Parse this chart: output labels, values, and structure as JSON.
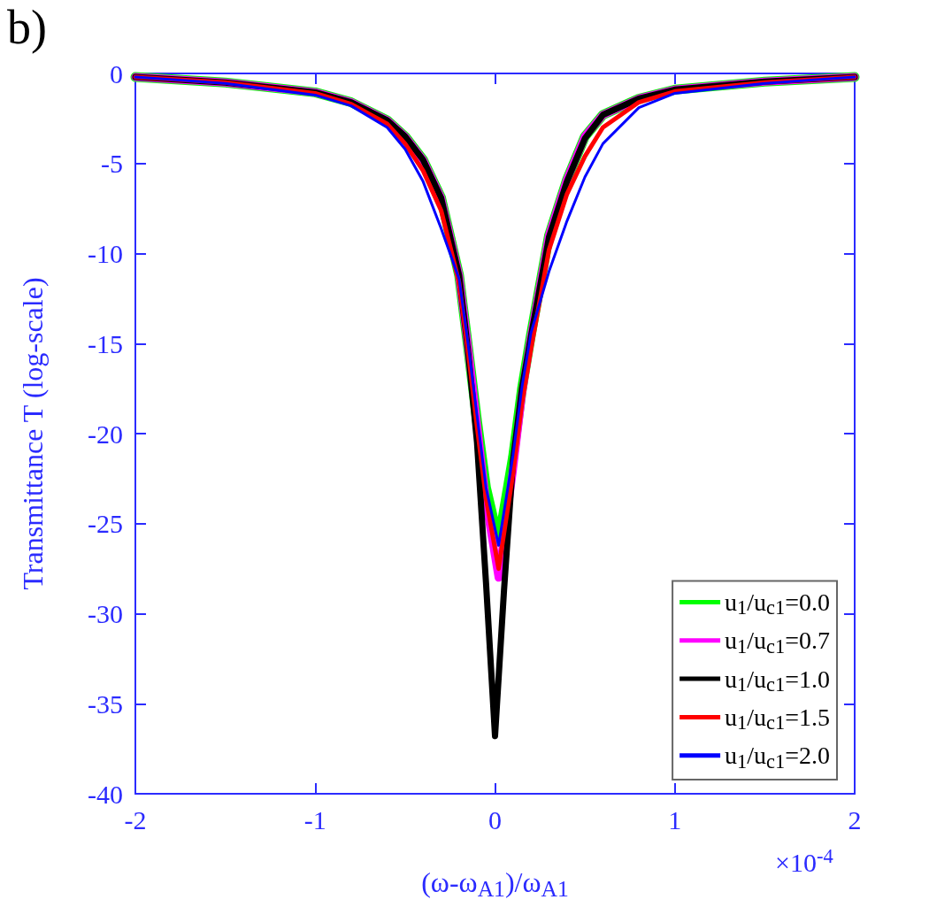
{
  "chart_data": {
    "type": "line",
    "xlabel": "(ω-ω$_{A1}$)/ω$_{A1}$",
    "ylabel": "Transmittance T (log-scale)",
    "annotations": [
      "b)",
      "×10$^{-4}$"
    ],
    "xlim": [
      -2,
      2
    ],
    "xticks": [
      -2,
      -1,
      0,
      1,
      2
    ],
    "ylim": [
      -40,
      0
    ],
    "yticks": [
      -40,
      -35,
      -30,
      -25,
      -20,
      -15,
      -10,
      -5,
      0
    ],
    "grid": false,
    "legend": "bottom right",
    "marker": "none",
    "line_style": "solid",
    "series": [
      {
        "name": "u$_{1}$/u$_{c1}$=0.0",
        "color": "#00ff00",
        "x": [
          -2,
          -1.5,
          -1,
          -0.8,
          -0.6,
          -0.5,
          -0.4,
          -0.3,
          -0.2,
          -0.15,
          -0.1,
          -0.05,
          0.02,
          0.1,
          0.15,
          0.2,
          0.3,
          0.4,
          0.5,
          0.6,
          0.8,
          1,
          1.5,
          2
        ],
        "values": [
          -0.2,
          -0.5,
          -1.05,
          -1.6,
          -2.6,
          -3.5,
          -4.8,
          -6.9,
          -11.2,
          -15.2,
          -19.3,
          -23,
          -26,
          -21.3,
          -17.5,
          -14.5,
          -9,
          -5.9,
          -3.5,
          -2.3,
          -1.4,
          -0.9,
          -0.45,
          -0.2
        ]
      },
      {
        "name": "u$_{1}$/u$_{c1}$=0.7",
        "color": "#ff00ff",
        "x": [
          -2,
          -1.5,
          -1,
          -0.8,
          -0.6,
          -0.5,
          -0.4,
          -0.3,
          -0.2,
          -0.15,
          -0.1,
          -0.05,
          0.02,
          0.1,
          0.15,
          0.2,
          0.3,
          0.4,
          0.5,
          0.6,
          0.8,
          1,
          1.5,
          2
        ],
        "values": [
          -0.2,
          -0.5,
          -1.05,
          -1.6,
          -2.6,
          -3.5,
          -4.8,
          -6.9,
          -11.2,
          -15.2,
          -19.5,
          -23.8,
          -28,
          -22,
          -17.8,
          -14.6,
          -9,
          -5.9,
          -3.5,
          -2.3,
          -1.4,
          -0.9,
          -0.45,
          -0.2
        ]
      },
      {
        "name": "u$_{1}$/u$_{c1}$=1.0",
        "color": "#000000",
        "x": [
          -2,
          -1.5,
          -1,
          -0.8,
          -0.6,
          -0.5,
          -0.4,
          -0.3,
          -0.2,
          -0.15,
          -0.1,
          -0.05,
          0,
          0.05,
          0.1,
          0.15,
          0.2,
          0.3,
          0.4,
          0.5,
          0.6,
          0.8,
          1,
          1.5,
          2
        ],
        "values": [
          -0.2,
          -0.5,
          -1.05,
          -1.6,
          -2.6,
          -3.5,
          -4.8,
          -6.9,
          -11.2,
          -15.4,
          -20.5,
          -28.3,
          -36.8,
          -28.7,
          -21.5,
          -17.5,
          -14.6,
          -9.1,
          -6,
          -3.6,
          -2.3,
          -1.4,
          -0.9,
          -0.45,
          -0.2
        ]
      },
      {
        "name": "u$_{1}$/u$_{c1}$=1.5",
        "color": "#ff0000",
        "x": [
          -2,
          -1.5,
          -1,
          -0.8,
          -0.6,
          -0.5,
          -0.4,
          -0.3,
          -0.2,
          -0.15,
          -0.1,
          -0.05,
          0.02,
          0.1,
          0.15,
          0.2,
          0.3,
          0.4,
          0.5,
          0.6,
          0.8,
          1,
          1.5,
          2
        ],
        "values": [
          -0.2,
          -0.5,
          -1.1,
          -1.7,
          -2.8,
          -3.9,
          -5.4,
          -7.6,
          -11.6,
          -15.4,
          -19.6,
          -23.6,
          -27.5,
          -22.2,
          -18.3,
          -15.3,
          -9.8,
          -6.7,
          -4.6,
          -3,
          -1.6,
          -1,
          -0.5,
          -0.2
        ]
      },
      {
        "name": "u$_{1}$/u$_{c1}$=2.0",
        "color": "#0000ff",
        "x": [
          -2,
          -1.5,
          -1,
          -0.8,
          -0.6,
          -0.5,
          -0.4,
          -0.3,
          -0.2,
          -0.15,
          -0.1,
          -0.05,
          0.02,
          0.1,
          0.15,
          0.2,
          0.3,
          0.4,
          0.5,
          0.6,
          0.8,
          1,
          1.5,
          2
        ],
        "values": [
          -0.2,
          -0.55,
          -1.2,
          -1.8,
          -3,
          -4.2,
          -6,
          -8.6,
          -11.4,
          -15,
          -19,
          -23,
          -26.2,
          -21.2,
          -17.4,
          -14.4,
          -11,
          -8.2,
          -5.75,
          -3.9,
          -1.9,
          -1.1,
          -0.55,
          -0.2
        ]
      }
    ]
  }
}
